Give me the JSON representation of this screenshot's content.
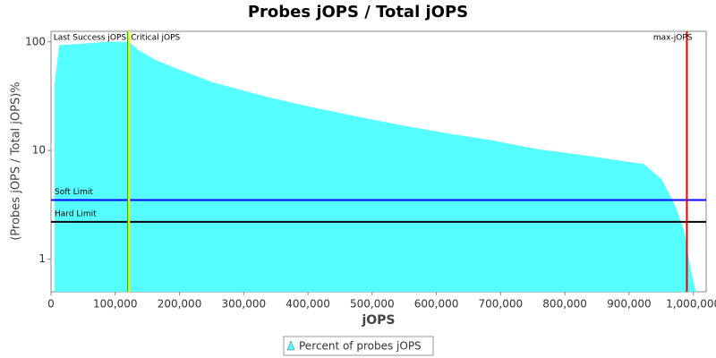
{
  "chart_data": {
    "type": "area",
    "title": "Probes jOPS / Total jOPS",
    "x_label": "jOPS",
    "y_label": "(Probes jOPS / Total jOPS)%",
    "log_scale": true,
    "x": [
      5600,
      12550,
      86500,
      121300,
      135000,
      163000,
      198000,
      254000,
      337500,
      407000,
      477000,
      547000,
      616000,
      686000,
      756000,
      826000,
      895000,
      923000,
      951000,
      972000,
      986000,
      996000,
      1004000
    ],
    "series": [
      {
        "name": "Percent of probes jOPS",
        "color": "#55ffff",
        "values": [
          40,
          93,
          100,
          100,
          85,
          68,
          56,
          42,
          31,
          25,
          20.5,
          17,
          14.4,
          12.4,
          10.3,
          9.1,
          7.9,
          7.5,
          5.4,
          3.1,
          1.8,
          0.8,
          0.5
        ]
      }
    ],
    "xlim": [
      0,
      1020000
    ],
    "ylim": [
      0.5,
      125
    ],
    "xticks": [
      0,
      {
        "value": 100000,
        "label": "100,000"
      },
      {
        "value": 200000,
        "label": "200,000"
      },
      {
        "value": 300000,
        "label": "300,000"
      },
      {
        "value": 400000,
        "label": "400,000"
      },
      {
        "value": 500000,
        "label": "500,000"
      },
      {
        "value": 600000,
        "label": "600,000"
      },
      {
        "value": 700000,
        "label": "700,000"
      },
      {
        "value": 800000,
        "label": "800,000"
      },
      {
        "value": 900000,
        "label": "900,000"
      },
      {
        "value": 1000000,
        "label": "1,000,000"
      }
    ],
    "yticks": [
      1,
      10,
      100
    ],
    "vertical_lines": [
      {
        "label": "Last Success jOPS",
        "value": 120000,
        "color": "#00bb00"
      },
      {
        "label": "Critical jOPS",
        "value": 121500,
        "color": "#ffff00"
      },
      {
        "label": "max-jOPS",
        "value": 990000,
        "color": "#dd0000"
      }
    ],
    "horizontal_lines": [
      {
        "label": "Soft Limit",
        "value": 3.5,
        "color": "#0000ff"
      },
      {
        "label": "Hard Limit",
        "value": 2.2,
        "color": "#000000"
      }
    ]
  }
}
